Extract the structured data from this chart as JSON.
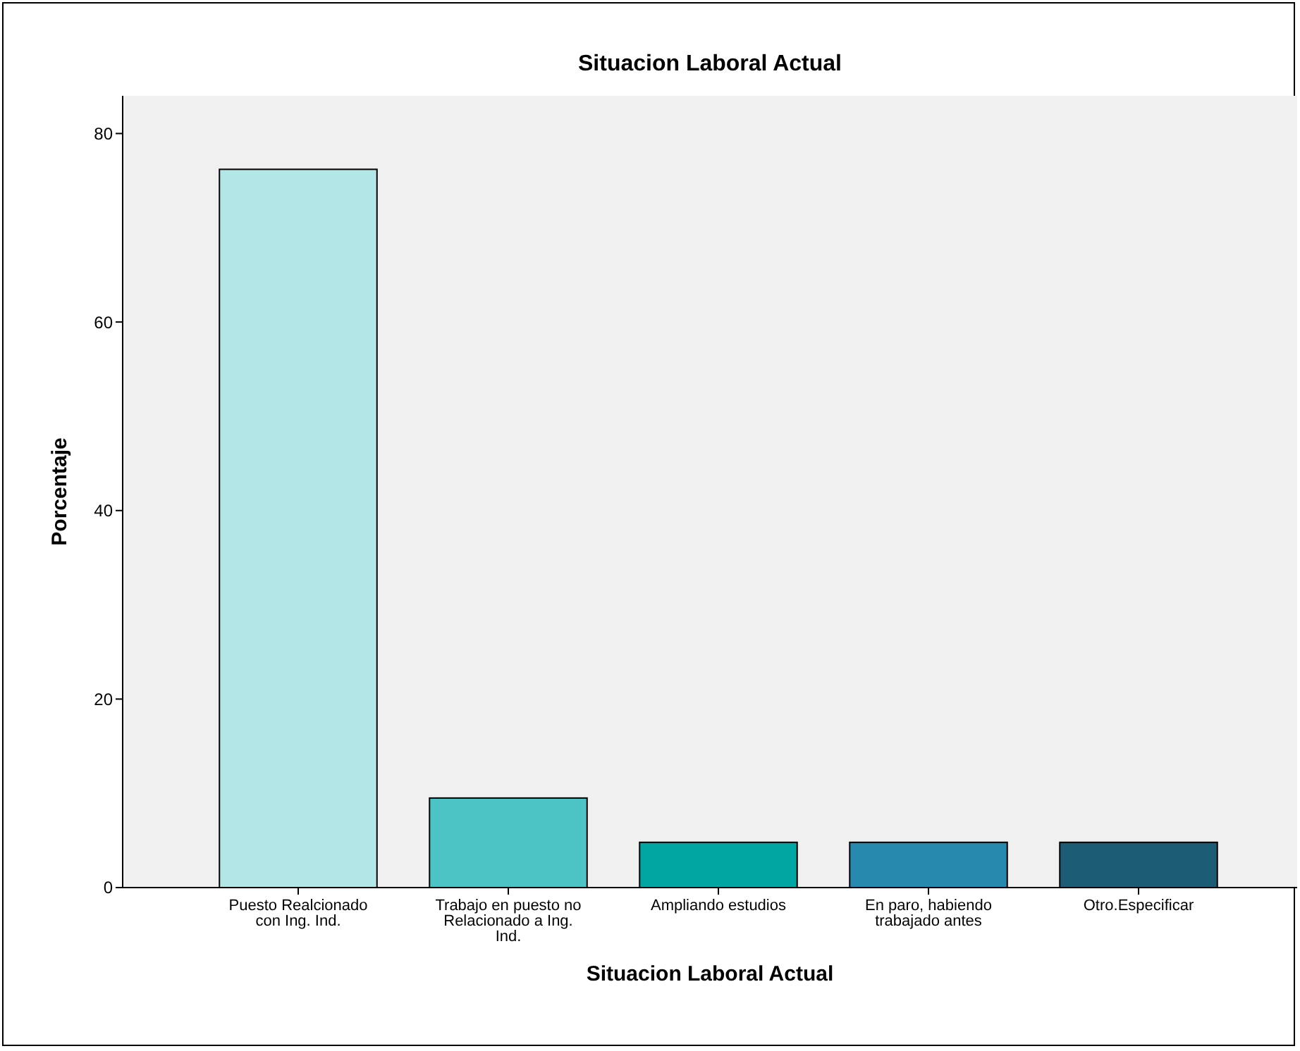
{
  "chart_data": {
    "type": "bar",
    "title": "Situacion Laboral Actual",
    "xlabel": "Situacion Laboral Actual",
    "ylabel": "Porcentaje",
    "categories": [
      "Puesto Realcionado con Ing. Ind.",
      "Trabajo en puesto no Relacionado a Ing. Ind.",
      "Ampliando estudios",
      "En paro, habiendo trabajado antes",
      "Otro.Especificar"
    ],
    "values": [
      76.2,
      9.5,
      4.8,
      4.8,
      4.8
    ],
    "colors": [
      "#b3e6e7",
      "#4cc4c6",
      "#00a6a2",
      "#2689ad",
      "#1c5d75"
    ],
    "ylim": [
      0,
      84
    ],
    "yticks": [
      0,
      20,
      40,
      60,
      80
    ],
    "grid": false
  }
}
